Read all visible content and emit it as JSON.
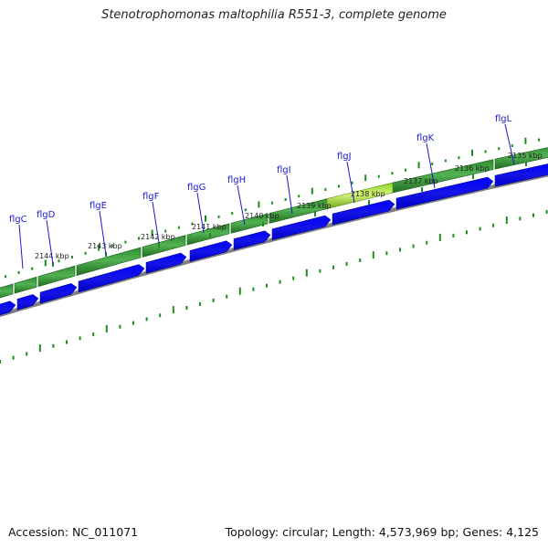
{
  "title": "Stenotrophomonas maltophilia R551-3, complete genome",
  "footer": {
    "accession": "Accession: NC_011071",
    "summary": "Topology: circular; Length: 4,573,969 bp; Genes: 4,125"
  },
  "genes": [
    {
      "name": "flgC"
    },
    {
      "name": "flgD"
    },
    {
      "name": "flgE"
    },
    {
      "name": "flgF"
    },
    {
      "name": "flgG"
    },
    {
      "name": "flgH"
    },
    {
      "name": "flgI"
    },
    {
      "name": "flgJ"
    },
    {
      "name": "flgK"
    },
    {
      "name": "flgL"
    }
  ],
  "scale_labels": [
    "2144 kbp",
    "2143 kbp",
    "2142 kbp",
    "2141 kbp",
    "2140 kbp",
    "2139 kbp",
    "2138 kbp",
    "2137 kbp",
    "2136 kbp",
    "2135 kbp"
  ],
  "colors": {
    "gene_label": "#1a1acc",
    "cds_feature": "#228b22",
    "highlight_feature": "#9acd32",
    "arrow_feature": "#0000ff",
    "backbone": "#808080",
    "tick": "#1e8c1e",
    "scale_label": "#222222"
  }
}
